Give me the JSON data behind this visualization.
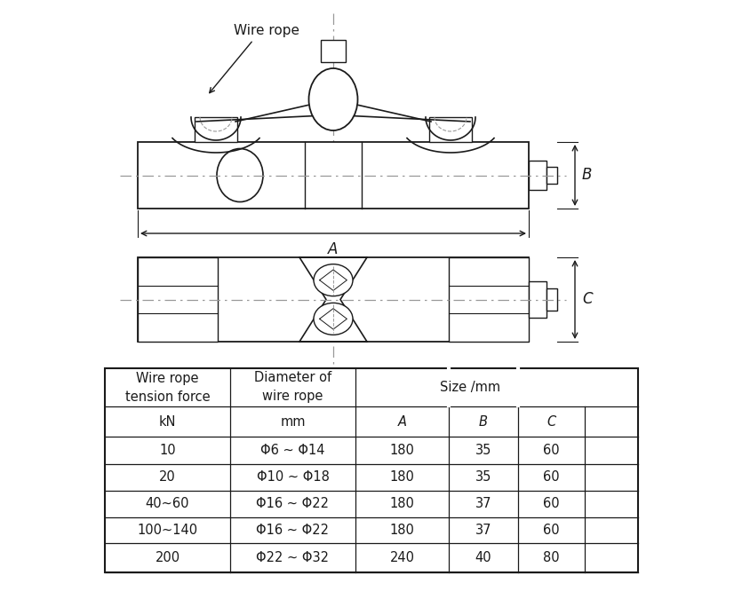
{
  "bg_color": "#ffffff",
  "line_color": "#1a1a1a",
  "dash_color": "#999999",
  "wire_rope_label": "Wire rope",
  "dim_A": "A",
  "dim_B": "B",
  "dim_C": "C",
  "table_data": [
    [
      "10",
      "Φ6 ~ Φ14",
      "180",
      "35",
      "60"
    ],
    [
      "20",
      "Φ10 ~ Φ18",
      "180",
      "35",
      "60"
    ],
    [
      "40~60",
      "Φ16 ~ Φ22",
      "180",
      "37",
      "60"
    ],
    [
      "100~140",
      "Φ16 ~ Φ22",
      "180",
      "37",
      "60"
    ],
    [
      "200",
      "Φ22 ~ Φ32",
      "240",
      "40",
      "80"
    ]
  ]
}
